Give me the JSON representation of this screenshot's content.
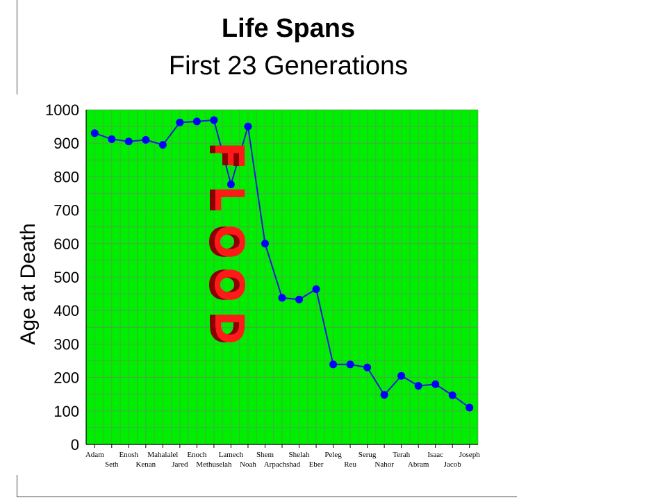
{
  "title": "Life Spans",
  "subtitle": "First 23 Generations",
  "annotation": "FLOOD",
  "colors": {
    "plot_background": "#00ee00",
    "grid": "#7a7a7a",
    "line": "#1a1adf",
    "marker": "#0000ff",
    "flood_text": "#ff1a1a",
    "flood_shadow": "#8a0000"
  },
  "chart_data": {
    "type": "line",
    "title": "Life Spans",
    "subtitle": "First 23 Generations",
    "ylabel": "Age at Death",
    "xlabel": "",
    "ylim": [
      0,
      1000
    ],
    "yticks": [
      0,
      100,
      200,
      300,
      400,
      500,
      600,
      700,
      800,
      900,
      1000
    ],
    "grid": true,
    "legend": "none",
    "categories": [
      "Adam",
      "Seth",
      "Enosh",
      "Kenan",
      "Mahalalel",
      "Jared",
      "Enoch",
      "Methuselah",
      "Lamech",
      "Noah",
      "Shem",
      "Arpachshad",
      "Shelah",
      "Eber",
      "Peleg",
      "Reu",
      "Serug",
      "Nahor",
      "Terah",
      "Abram",
      "Isaac",
      "Jacob",
      "Joseph"
    ],
    "series": [
      {
        "values": [
          930,
          912,
          905,
          910,
          895,
          962,
          965,
          969,
          777,
          950,
          600,
          438,
          433,
          464,
          239,
          239,
          230,
          148,
          205,
          175,
          180,
          147,
          110
        ]
      }
    ]
  }
}
